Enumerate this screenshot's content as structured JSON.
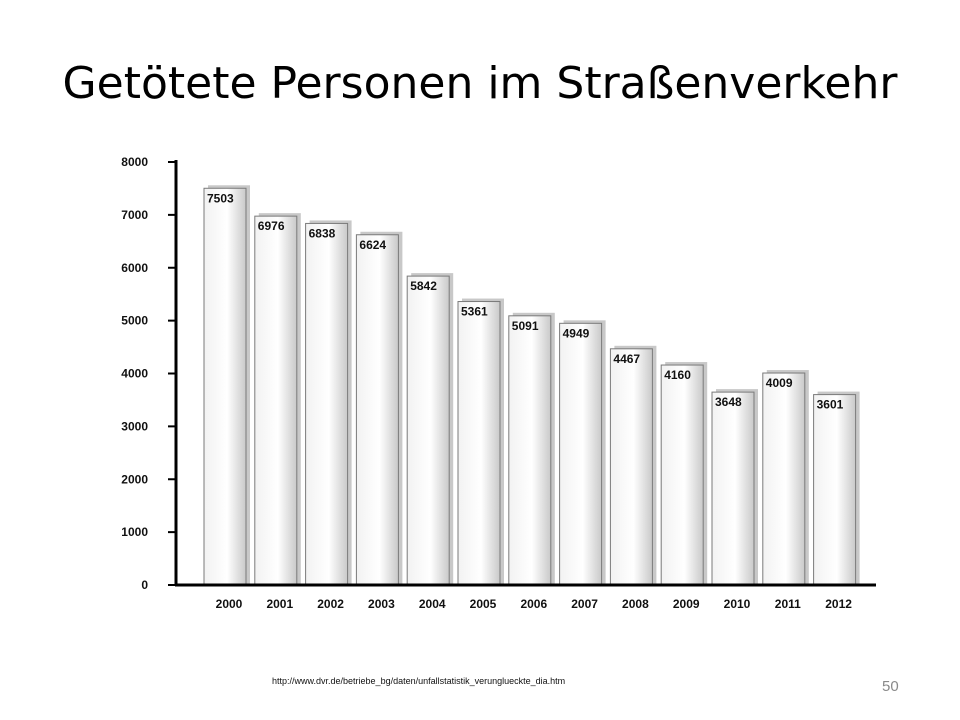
{
  "slide": {
    "title": "Getötete Personen im Straßenverkehr",
    "source": "http://www.dvr.de/betriebe_bg/daten/unfallstatistik_verunglueckte_dia.htm",
    "page_number": "50"
  },
  "chart_data": {
    "type": "bar",
    "categories": [
      "2000",
      "2001",
      "2002",
      "2003",
      "2004",
      "2005",
      "2006",
      "2007",
      "2008",
      "2009",
      "2010",
      "2011",
      "2012"
    ],
    "values": [
      7503,
      6976,
      6838,
      6624,
      5842,
      5361,
      5091,
      4949,
      4467,
      4160,
      3648,
      4009,
      3601
    ],
    "yticks": [
      0,
      1000,
      2000,
      3000,
      4000,
      5000,
      6000,
      7000,
      8000
    ],
    "ylim": [
      0,
      8000
    ],
    "grid": false,
    "legend": "none",
    "bar_style": "silver gradient with drop shadow, value label inside top of bar"
  }
}
